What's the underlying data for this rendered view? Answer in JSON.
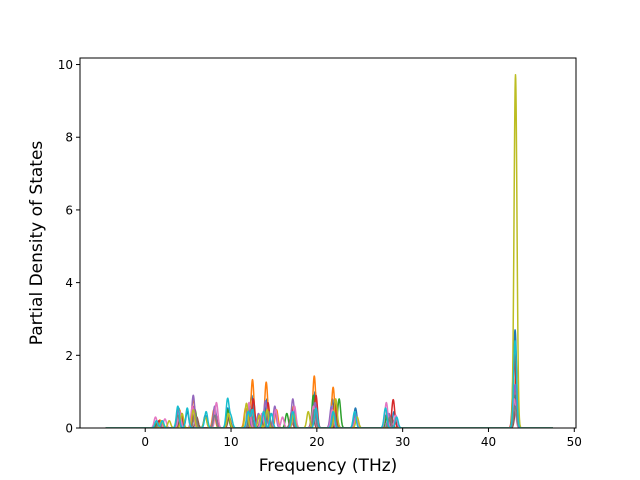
{
  "chart_data": {
    "type": "line",
    "title": "",
    "xlabel": "Frequency (THz)",
    "ylabel": "Partial Density of States",
    "xlim": [
      -7.6,
      50.2
    ],
    "ylim": [
      0,
      10.18
    ],
    "xticks": [
      0,
      10,
      20,
      30,
      40,
      50
    ],
    "yticks": [
      0,
      2,
      4,
      6,
      8,
      10
    ],
    "x_range_plotted": [
      -4.6,
      47.5
    ],
    "grid": false,
    "legend": "none",
    "peak_width_thz": 0.17,
    "series": [
      {
        "color": "#1f77b4",
        "peaks": [
          [
            1.5,
            0.18
          ],
          [
            3.9,
            0.55
          ],
          [
            4.9,
            0.45
          ],
          [
            7.0,
            0.35
          ],
          [
            9.6,
            0.55
          ],
          [
            12.4,
            0.9
          ],
          [
            14.2,
            0.8
          ],
          [
            17.2,
            0.55
          ],
          [
            19.8,
            1.0
          ],
          [
            21.8,
            0.8
          ],
          [
            24.5,
            0.55
          ],
          [
            28.0,
            0.35
          ],
          [
            29.0,
            0.45
          ],
          [
            43.1,
            2.7
          ]
        ]
      },
      {
        "color": "#ff7f0e",
        "peaks": [
          [
            1.7,
            0.22
          ],
          [
            4.0,
            0.5
          ],
          [
            5.6,
            0.8
          ],
          [
            8.0,
            0.5
          ],
          [
            11.7,
            0.55
          ],
          [
            12.5,
            1.33
          ],
          [
            14.1,
            1.26
          ],
          [
            15.3,
            0.5
          ],
          [
            17.3,
            0.6
          ],
          [
            19.7,
            1.43
          ],
          [
            21.9,
            1.12
          ],
          [
            43.2,
            1.4
          ]
        ]
      },
      {
        "color": "#2ca02c",
        "peaks": [
          [
            1.4,
            0.15
          ],
          [
            3.8,
            0.4
          ],
          [
            5.8,
            0.5
          ],
          [
            9.6,
            0.5
          ],
          [
            12.2,
            0.6
          ],
          [
            13.8,
            0.45
          ],
          [
            16.5,
            0.4
          ],
          [
            19.6,
            0.9
          ],
          [
            22.6,
            0.8
          ],
          [
            28.2,
            0.4
          ],
          [
            43.1,
            0.9
          ]
        ]
      },
      {
        "color": "#d62728",
        "peaks": [
          [
            1.6,
            0.2
          ],
          [
            4.2,
            0.4
          ],
          [
            5.7,
            0.6
          ],
          [
            8.2,
            0.4
          ],
          [
            12.6,
            0.8
          ],
          [
            14.3,
            0.7
          ],
          [
            17.1,
            0.5
          ],
          [
            19.9,
            0.9
          ],
          [
            22.1,
            0.7
          ],
          [
            28.9,
            0.78
          ],
          [
            43.0,
            2.1
          ]
        ]
      },
      {
        "color": "#9467bd",
        "peaks": [
          [
            1.8,
            0.15
          ],
          [
            3.9,
            0.5
          ],
          [
            5.6,
            0.9
          ],
          [
            8.1,
            0.6
          ],
          [
            12.0,
            0.6
          ],
          [
            13.2,
            0.4
          ],
          [
            14.0,
            0.75
          ],
          [
            15.1,
            0.6
          ],
          [
            17.2,
            0.8
          ],
          [
            19.8,
            0.7
          ],
          [
            21.7,
            0.6
          ],
          [
            24.5,
            0.4
          ],
          [
            28.4,
            0.4
          ],
          [
            43.1,
            1.2
          ]
        ]
      },
      {
        "color": "#8c564b",
        "peaks": [
          [
            1.5,
            0.1
          ],
          [
            4.1,
            0.3
          ],
          [
            6.0,
            0.3
          ],
          [
            9.8,
            0.3
          ],
          [
            12.3,
            0.4
          ],
          [
            13.5,
            0.3
          ],
          [
            17.0,
            0.3
          ],
          [
            19.5,
            0.4
          ],
          [
            22.3,
            0.3
          ],
          [
            28.7,
            0.3
          ],
          [
            43.2,
            0.5
          ]
        ]
      },
      {
        "color": "#e377c2",
        "peaks": [
          [
            1.2,
            0.3
          ],
          [
            2.3,
            0.25
          ],
          [
            4.0,
            0.45
          ],
          [
            5.5,
            0.6
          ],
          [
            8.3,
            0.7
          ],
          [
            12.1,
            0.7
          ],
          [
            13.6,
            0.4
          ],
          [
            15.2,
            0.5
          ],
          [
            16.0,
            0.3
          ],
          [
            17.4,
            0.6
          ],
          [
            19.6,
            0.6
          ],
          [
            21.8,
            0.5
          ],
          [
            24.6,
            0.3
          ],
          [
            28.1,
            0.7
          ],
          [
            29.2,
            0.35
          ],
          [
            43.0,
            0.8
          ]
        ]
      },
      {
        "color": "#7f7f7f",
        "peaks": [
          [
            1.6,
            0.12
          ],
          [
            3.8,
            0.35
          ],
          [
            5.8,
            0.4
          ],
          [
            8.1,
            0.35
          ],
          [
            12.3,
            0.5
          ],
          [
            14.4,
            0.45
          ],
          [
            17.1,
            0.4
          ],
          [
            19.7,
            0.5
          ],
          [
            22.0,
            0.45
          ],
          [
            28.5,
            0.3
          ],
          [
            43.1,
            0.6
          ]
        ]
      },
      {
        "color": "#bcbd22",
        "peaks": [
          [
            1.9,
            0.2
          ],
          [
            2.8,
            0.2
          ],
          [
            4.3,
            0.4
          ],
          [
            5.6,
            0.5
          ],
          [
            7.0,
            0.3
          ],
          [
            9.7,
            0.4
          ],
          [
            11.8,
            0.68
          ],
          [
            13.3,
            0.35
          ],
          [
            14.2,
            0.5
          ],
          [
            17.3,
            0.4
          ],
          [
            19.0,
            0.45
          ],
          [
            22.2,
            0.8
          ],
          [
            24.7,
            0.3
          ],
          [
            43.15,
            9.72
          ]
        ]
      },
      {
        "color": "#17becf",
        "peaks": [
          [
            1.3,
            0.2
          ],
          [
            2.0,
            0.2
          ],
          [
            3.8,
            0.6
          ],
          [
            4.9,
            0.55
          ],
          [
            7.1,
            0.45
          ],
          [
            9.6,
            0.8
          ],
          [
            10.0,
            0.3
          ],
          [
            12.0,
            0.45
          ],
          [
            12.5,
            0.5
          ],
          [
            13.8,
            0.45
          ],
          [
            14.7,
            0.4
          ],
          [
            17.2,
            0.45
          ],
          [
            19.9,
            0.55
          ],
          [
            21.9,
            0.45
          ],
          [
            24.4,
            0.45
          ],
          [
            28.0,
            0.55
          ],
          [
            29.3,
            0.3
          ],
          [
            43.1,
            2.4
          ]
        ]
      }
    ]
  }
}
